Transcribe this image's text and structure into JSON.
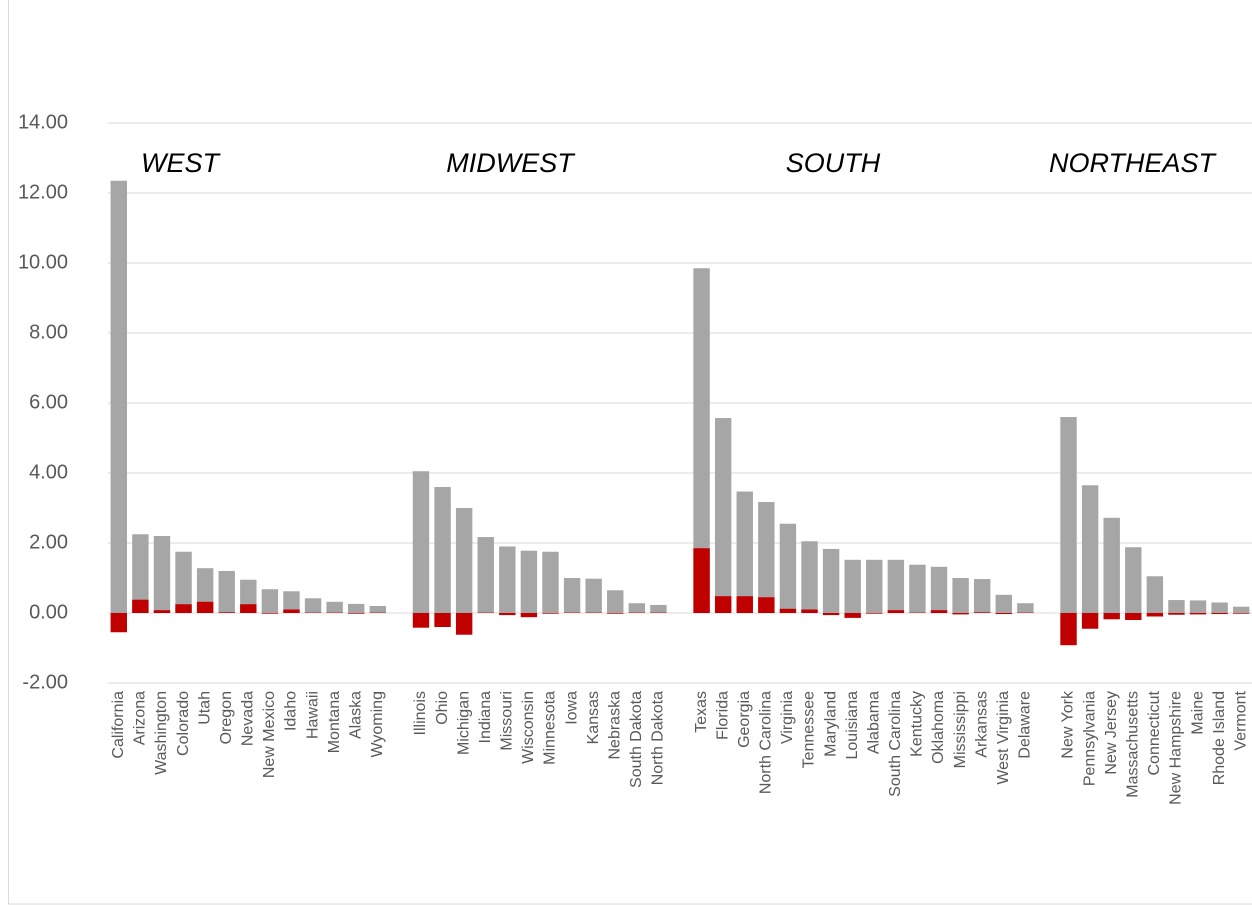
{
  "chart_data": {
    "type": "bar",
    "categories": [
      "California",
      "Arizona",
      "Washington",
      "Colorado",
      "Utah",
      "Oregon",
      "Nevada",
      "New Mexico",
      "Idaho",
      "Hawaii",
      "Montana",
      "Alaska",
      "Wyoming",
      null,
      "Illinois",
      "Ohio",
      "Michigan",
      "Indiana",
      "Missouri",
      "Wisconsin",
      "Minnesota",
      "Iowa",
      "Kansas",
      "Nebraska",
      "South Dakota",
      "North Dakota",
      null,
      "Texas",
      "Florida",
      "Georgia",
      "North Carolina",
      "Virginia",
      "Tennessee",
      "Maryland",
      "Louisiana",
      "Alabama",
      "South Carolina",
      "Kentucky",
      "Oklahoma",
      "Mississippi",
      "Arkansas",
      "West Virginia",
      "Delaware",
      null,
      "New York",
      "Pennsylvania",
      "New Jersey",
      "Massachusetts",
      "Connecticut",
      "New Hampshire",
      "Maine",
      "Rhode Island",
      "Vermont"
    ],
    "series": [
      {
        "color": "#a6a6a6",
        "values": [
          12.35,
          2.25,
          2.2,
          1.75,
          1.28,
          1.2,
          0.95,
          0.68,
          0.62,
          0.42,
          0.32,
          0.26,
          0.2,
          null,
          4.05,
          3.6,
          3.0,
          2.17,
          1.9,
          1.78,
          1.75,
          1.0,
          0.98,
          0.65,
          0.28,
          0.23,
          null,
          9.85,
          5.57,
          3.47,
          3.17,
          2.55,
          2.05,
          1.83,
          1.52,
          1.52,
          1.52,
          1.38,
          1.32,
          1.0,
          0.97,
          0.52,
          0.28,
          null,
          5.6,
          3.65,
          2.72,
          1.88,
          1.05,
          0.37,
          0.36,
          0.3,
          0.18
        ]
      },
      {
        "color": "#c00000",
        "values": [
          -0.55,
          0.38,
          0.08,
          0.25,
          0.32,
          0.02,
          0.25,
          -0.02,
          0.1,
          0.01,
          0.01,
          -0.02,
          0.01,
          null,
          -0.42,
          -0.4,
          -0.62,
          0.01,
          -0.06,
          -0.12,
          -0.02,
          0.01,
          0.01,
          -0.02,
          0.01,
          0.01,
          null,
          1.85,
          0.48,
          0.48,
          0.45,
          0.12,
          0.1,
          -0.06,
          -0.14,
          -0.02,
          0.08,
          0.01,
          0.08,
          -0.04,
          0.02,
          -0.03,
          0.01,
          null,
          -0.92,
          -0.45,
          -0.18,
          -0.2,
          -0.1,
          -0.05,
          -0.04,
          -0.03,
          -0.02
        ]
      }
    ],
    "annotations": [
      "WEST",
      "MIDWEST",
      "SOUTH",
      "NORTHEAST"
    ],
    "ylim": [
      -2,
      14
    ],
    "yticks": [
      {
        "value": -2,
        "label": "-2.00"
      },
      {
        "value": 0,
        "label": "0.00"
      },
      {
        "value": 2,
        "label": "2.00"
      },
      {
        "value": 4,
        "label": "4.00"
      },
      {
        "value": 6,
        "label": "6.00"
      },
      {
        "value": 8,
        "label": "8.00"
      },
      {
        "value": 10,
        "label": "10.00"
      },
      {
        "value": 12,
        "label": "12.00"
      },
      {
        "value": 14,
        "label": "14.00"
      }
    ],
    "grid": true
  }
}
